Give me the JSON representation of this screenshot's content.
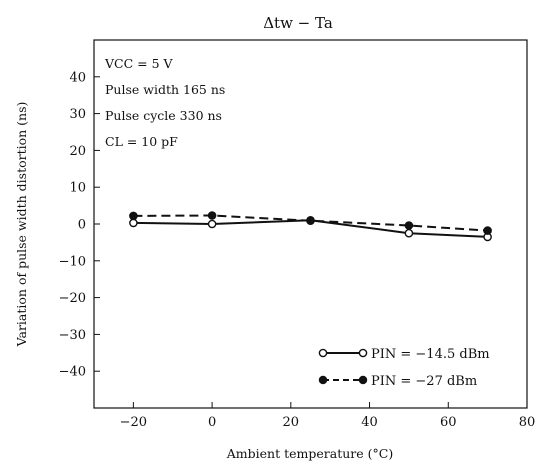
{
  "chart_data": {
    "type": "line",
    "title": "Δtw − Ta",
    "xlabel": "Ambient temperature (°C)",
    "ylabel": "Variation of pulse width distortion (ns)",
    "xlim": [
      -30,
      80
    ],
    "ylim": [
      -50,
      50
    ],
    "xticks": [
      -20,
      0,
      20,
      40,
      60,
      80
    ],
    "yticks": [
      40,
      30,
      20,
      10,
      0,
      -10,
      -20,
      -30,
      -40
    ],
    "grid": false,
    "legend_position": "bottom-right",
    "conditions": [
      "VCC = 5 V",
      "Pulse width 165 ns",
      "Pulse cycle 330 ns",
      "CL = 10 pF"
    ],
    "series": [
      {
        "name": "PIN = −14.5 dBm",
        "line": "solid",
        "marker": "open-circle",
        "x": [
          -20,
          0,
          25,
          50,
          70
        ],
        "y": [
          0.3,
          0.0,
          1.0,
          -2.5,
          -3.5
        ]
      },
      {
        "name": "PIN = −27 dBm",
        "line": "dashed",
        "marker": "filled-circle",
        "x": [
          -20,
          0,
          25,
          50,
          70
        ],
        "y": [
          2.2,
          2.3,
          0.9,
          -0.4,
          -1.8
        ]
      }
    ]
  }
}
